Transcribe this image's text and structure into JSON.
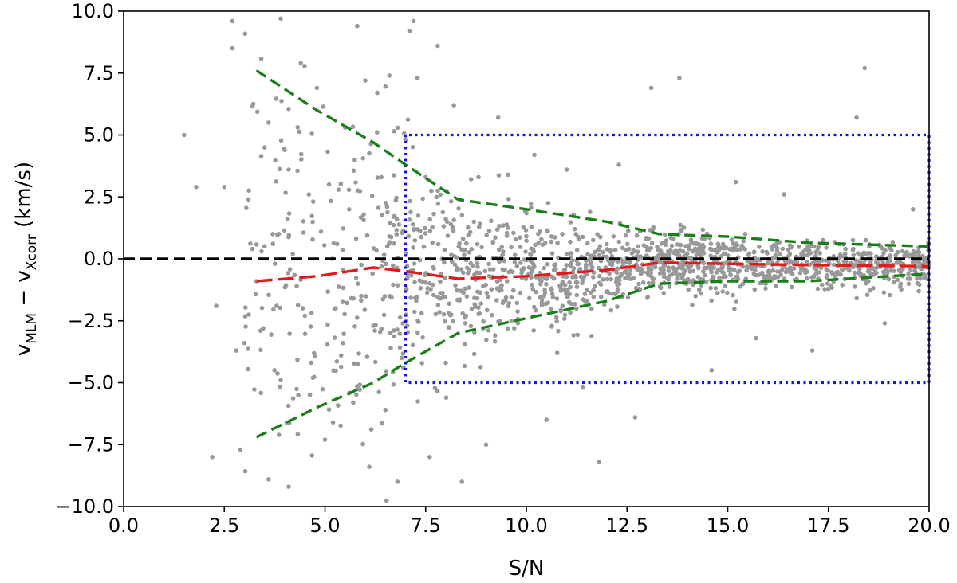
{
  "chart_data": {
    "type": "scatter",
    "xlabel": "S/N",
    "ylabel": {
      "v1": "v",
      "sub1": "MLM",
      "op": " − ",
      "v2": "v",
      "sub2": "Xcorr",
      "unit": " (km/s)"
    },
    "xlim": [
      0,
      20
    ],
    "ylim": [
      -10,
      10
    ],
    "xticks": [
      "0.0",
      "2.5",
      "5.0",
      "7.5",
      "10.0",
      "12.5",
      "15.0",
      "17.5",
      "20.0"
    ],
    "yticks": [
      "10.0",
      "7.5",
      "5.0",
      "2.5",
      "0.0",
      "−2.5",
      "−5.0",
      "−7.5",
      "−10.0"
    ],
    "grid": false,
    "colors": {
      "points": "#999999",
      "zero_line": "#000000",
      "median": "#e31a1c",
      "envelope": "#1a7f1a",
      "box": "#1414e0"
    },
    "lines": {
      "zero": {
        "x": [
          0,
          20
        ],
        "y": [
          0,
          0
        ]
      },
      "box": {
        "x": [
          7,
          7,
          20,
          20,
          7
        ],
        "y": [
          5,
          -5,
          -5,
          5,
          5
        ]
      },
      "upper_envelope": {
        "x": [
          3.3,
          4.8,
          6.2,
          7.0,
          8.3,
          10.0,
          12.0,
          13.3,
          15.0,
          17.0,
          20.0
        ],
        "y": [
          7.6,
          6.0,
          4.7,
          3.8,
          2.4,
          2.0,
          1.5,
          1.0,
          0.9,
          0.65,
          0.5
        ]
      },
      "lower_envelope": {
        "x": [
          3.3,
          4.8,
          6.2,
          7.0,
          8.3,
          10.0,
          12.0,
          13.3,
          15.0,
          17.0,
          20.0
        ],
        "y": [
          -7.2,
          -6.0,
          -5.0,
          -4.2,
          -3.0,
          -2.4,
          -1.7,
          -1.0,
          -0.9,
          -0.9,
          -0.6
        ]
      },
      "median": {
        "x": [
          3.3,
          4.8,
          6.2,
          7.0,
          8.3,
          10.0,
          12.0,
          13.3,
          15.0,
          17.0,
          20.0
        ],
        "y": [
          -0.9,
          -0.7,
          -0.35,
          -0.5,
          -0.8,
          -0.7,
          -0.45,
          -0.15,
          -0.2,
          -0.25,
          -0.3
        ]
      }
    },
    "points_sample": {
      "x": [
        1.5,
        1.8,
        2.2,
        2.3,
        2.5,
        2.7,
        2.7,
        2.8,
        2.9,
        3.0,
        3.1,
        3.2,
        3.3,
        3.4,
        3.5,
        3.6,
        3.6,
        3.7,
        3.8,
        3.9,
        3.9,
        4.0,
        4.1,
        4.1,
        4.2,
        4.3,
        4.4,
        4.5,
        4.6,
        4.7,
        4.8,
        4.9,
        5.0,
        5.1,
        5.2,
        5.3,
        5.4,
        5.5,
        5.6,
        5.7,
        5.8,
        5.9,
        6.0,
        6.1,
        6.2,
        6.3,
        6.4,
        6.5,
        6.6,
        6.7,
        6.8,
        6.9,
        7.0,
        7.1,
        7.2,
        7.3,
        7.4,
        7.5,
        7.6,
        7.8,
        8.0,
        8.2,
        8.4,
        8.7,
        9.0,
        9.3,
        9.7,
        10.2,
        10.5,
        11.0,
        11.4,
        11.8,
        12.3,
        12.7,
        13.1,
        13.8,
        14.6,
        15.2,
        15.7,
        16.4,
        17.1,
        18.2,
        18.4,
        18.9,
        19.6
      ],
      "y": [
        5.0,
        2.9,
        -8.0,
        -1.9,
        2.9,
        9.6,
        8.5,
        -3.7,
        -7.7,
        -3.4,
        2.4,
        0.4,
        -0.9,
        -2.9,
        4.5,
        -8.9,
        5.5,
        1.0,
        -1.9,
        9.7,
        -4.9,
        4.4,
        -9.2,
        3.6,
        0.2,
        -1.1,
        7.9,
        -2.3,
        2.6,
        -4.8,
        6.9,
        1.1,
        -7.3,
        3.0,
        -6.6,
        0.6,
        -3.9,
        5.3,
        2.0,
        -5.8,
        9.4,
        -1.5,
        7.2,
        -8.4,
        -2.7,
        6.7,
        3.3,
        -6.1,
        7.4,
        1.7,
        -9.0,
        -4.0,
        4.8,
        9.2,
        9.6,
        7.3,
        -2.2,
        3.3,
        -8.0,
        8.6,
        -4.2,
        6.2,
        -9.0,
        1.5,
        -7.5,
        5.7,
        -2.8,
        4.2,
        -6.5,
        3.6,
        -5.2,
        -8.2,
        3.8,
        -6.4,
        6.9,
        7.3,
        -4.5,
        3.1,
        -3.2,
        2.6,
        -3.7,
        5.7,
        7.7,
        -2.6,
        2.0
      ]
    }
  }
}
